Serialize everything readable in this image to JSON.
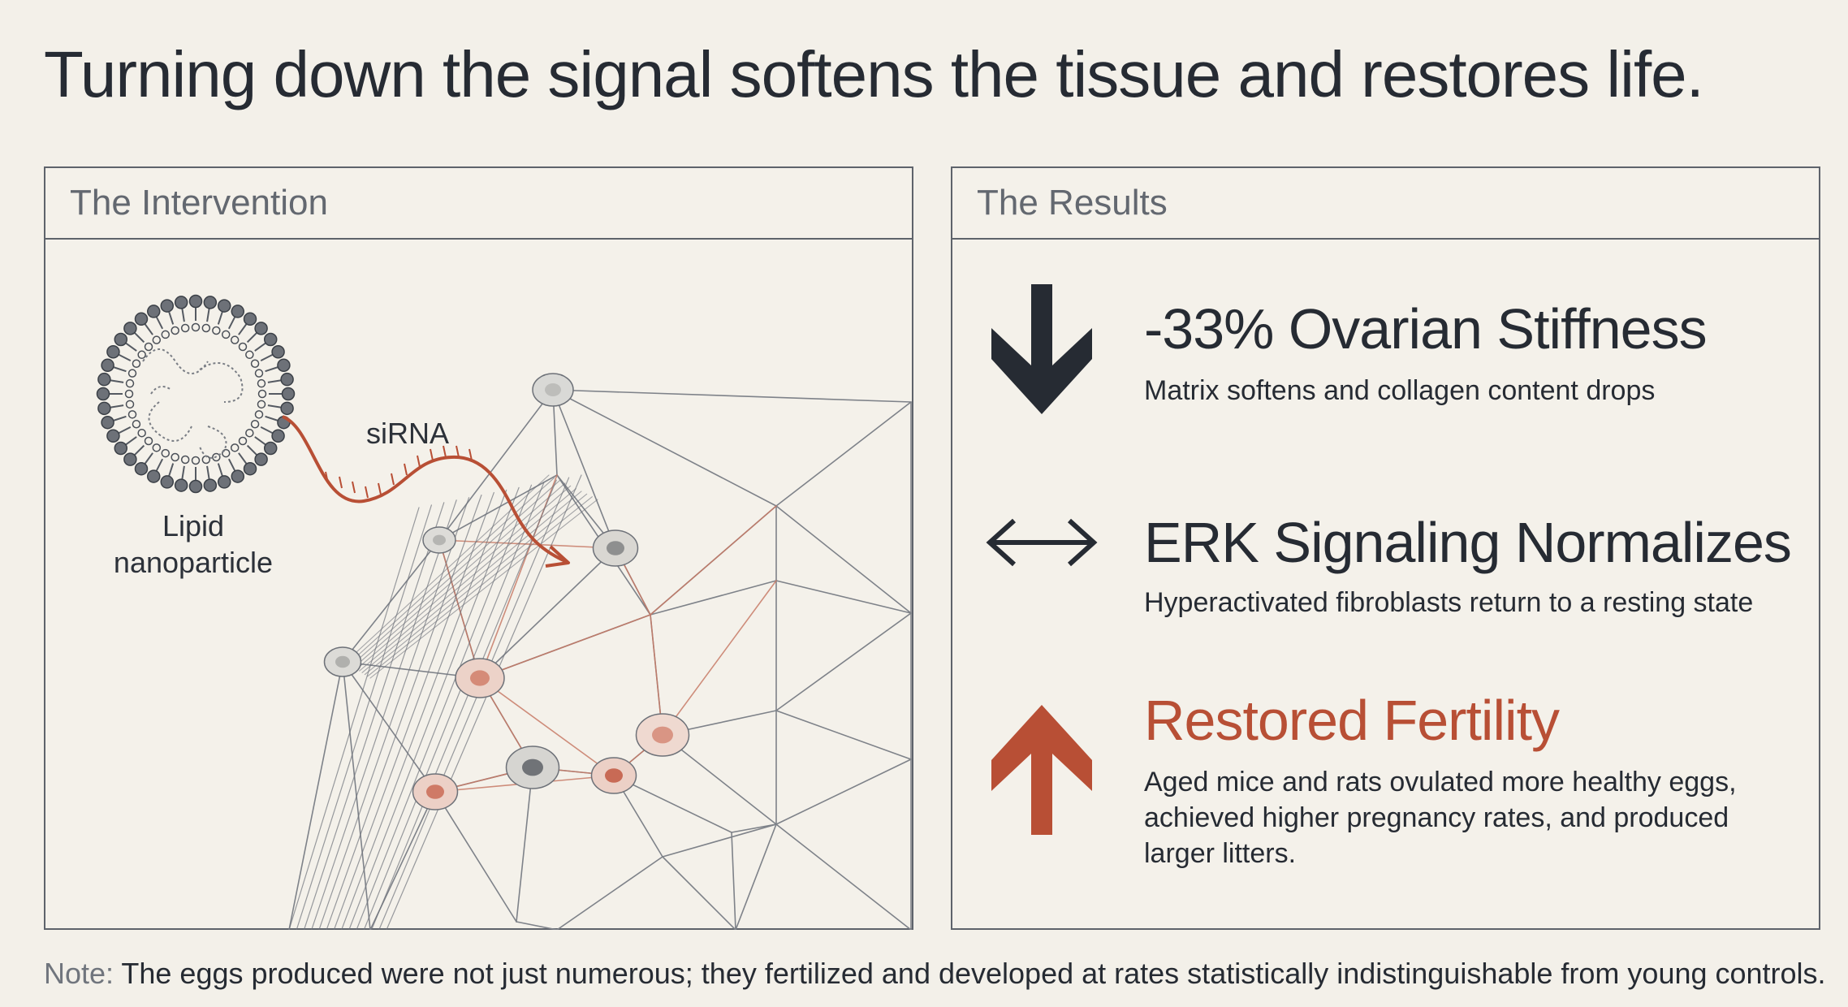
{
  "title": "Turning down the signal softens the tissue and restores life.",
  "left_panel": {
    "heading": "The Intervention",
    "labels": {
      "sirna": "siRNA",
      "lipid_line1": "Lipid",
      "lipid_line2": "nanoparticle"
    }
  },
  "right_panel": {
    "heading": "The Results",
    "results": [
      {
        "icon": "arrow-down-icon",
        "headline": "-33% Ovarian Stiffness",
        "description": "Matrix softens and collagen content drops"
      },
      {
        "icon": "arrow-left-right-icon",
        "headline": "ERK Signaling Normalizes",
        "description": "Hyperactivated fibroblasts return to a resting state"
      },
      {
        "icon": "arrow-up-icon",
        "headline": "Restored Fertility",
        "description_lines": [
          "Aged mice and rats ovulated more healthy eggs,",
          "achieved higher pregnancy rates, and produced",
          "larger litters."
        ]
      }
    ]
  },
  "note": {
    "label": "Note:",
    "text": " The eggs produced were not just numerous; they fertilized and developed at rates statistically indistinguishable from young controls."
  },
  "colors": {
    "background": "#f3f0e9",
    "ink": "#262b33",
    "accent": "#b84f35",
    "muted": "#636870"
  }
}
